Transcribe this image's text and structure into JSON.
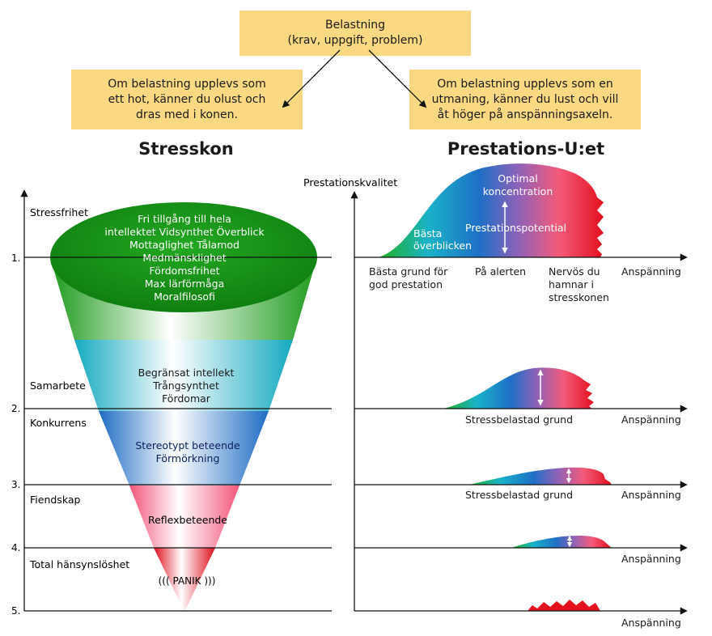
{
  "boxes": {
    "top": [
      "Belastning",
      "(krav, uppgift, problem)"
    ],
    "left": [
      "Om belastning upplevs som",
      "ett hot, känner du olust och",
      "dras med i konen."
    ],
    "right": [
      "Om belastning upplevs som en",
      "utmaning, känner du lust och vill",
      "åt höger på anspänningsaxeln."
    ]
  },
  "headings": {
    "left": "Stresskon",
    "right": "Prestations-U:et"
  },
  "levels": [
    {
      "number": "1.",
      "label": "Stressfrihet"
    },
    {
      "number": "2.",
      "label": "Samarbete"
    },
    {
      "number": "3.",
      "label": "Fiendskap"
    },
    {
      "number": "4.",
      "label": "Total hänsynslöshet"
    },
    {
      "number": "5.",
      "label": ""
    }
  ],
  "extra_label": "Konkurrens",
  "cone": {
    "top_lines": [
      "Fri tillgång till hela",
      "intellektet Vidsynthet Överblick",
      "Mottaglighet Tålamod",
      "Medmänsklighet",
      "Fördomsfrihet",
      "Max lärförmåga",
      "Moralfilosofi"
    ],
    "band2": [
      "Begränsat intellekt",
      "Trångsynthet",
      "Fördomar"
    ],
    "band3": [
      "Stereotypt beteende",
      "Förmörkning"
    ],
    "band4": [
      "Reflexbeteende"
    ],
    "band5": [
      "((( PANIK )))"
    ]
  },
  "performance": {
    "y_label": "Prestationskvalitet",
    "x_label": "Anspänning",
    "peak_inside": [
      "Bästa",
      "överblicken"
    ],
    "peak_top": [
      "Optimal",
      "koncentration"
    ],
    "potential": "Prestationspotential",
    "axis1_labels": {
      "best": [
        "Bästa grund för",
        "god prestation"
      ],
      "alert": [
        "På alerten"
      ],
      "nervous": [
        "Nervös du",
        "hamnar i",
        "stresskonen"
      ]
    },
    "ground_label": "Stressbelastad grund"
  },
  "colors": {
    "box": "#fcd883",
    "green": "#22a821",
    "cyan": "#19b2c8",
    "blue": "#1f6fc6",
    "pink": "#f45a7a",
    "red": "#e3101e"
  }
}
